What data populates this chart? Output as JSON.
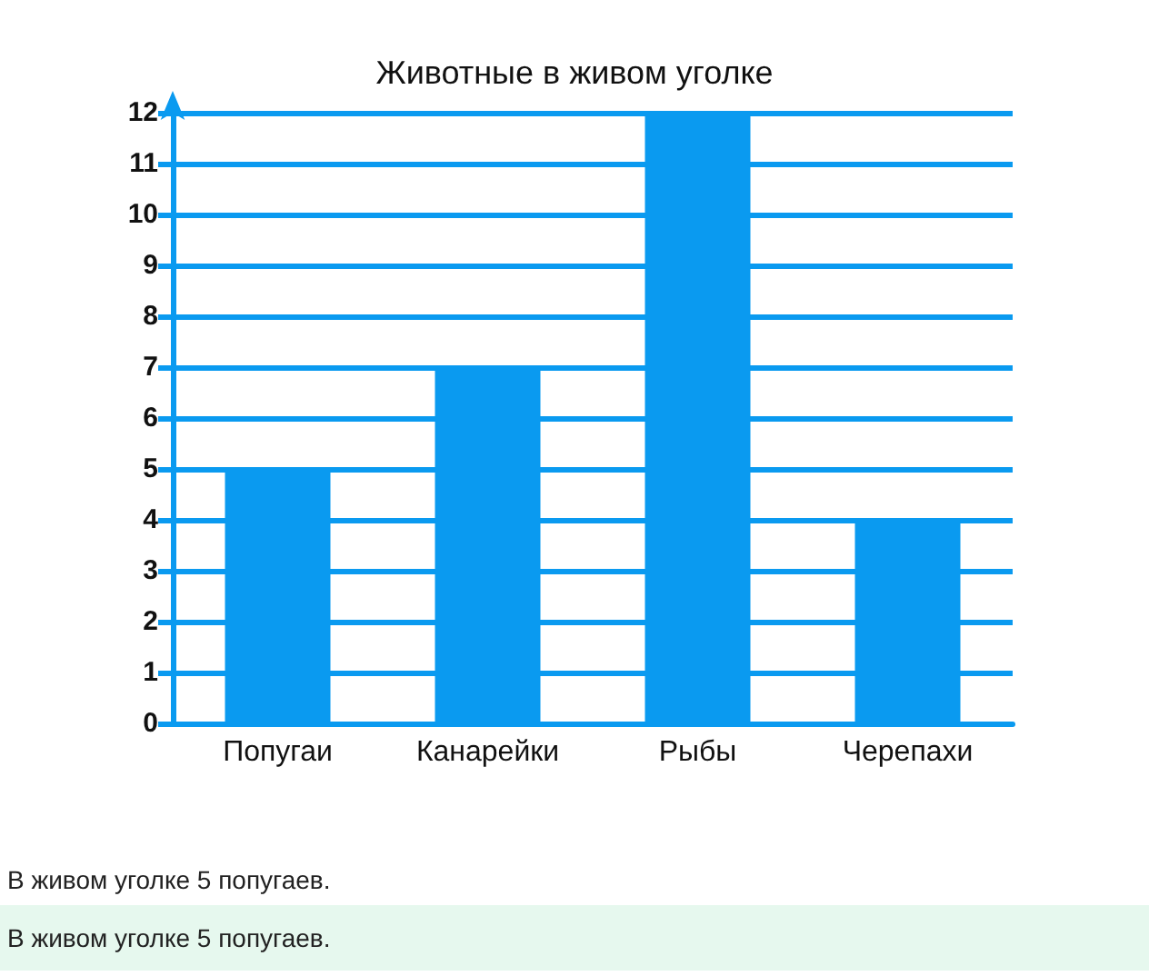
{
  "chart_data": {
    "type": "bar",
    "title": "Животные в живом уголке",
    "categories": [
      "Попугаи",
      "Канарейки",
      "Рыбы",
      "Черепахи"
    ],
    "values": [
      5,
      7,
      12,
      4
    ],
    "color": "#0a9af0",
    "ylim": [
      0,
      12
    ],
    "yticks": [
      0,
      1,
      2,
      3,
      4,
      5,
      6,
      7,
      8,
      9,
      10,
      11,
      12
    ],
    "grid": "y",
    "annotations": [
      "В живом уголке 5 попугаев.",
      "В живом уголке 5 попугаев."
    ]
  }
}
